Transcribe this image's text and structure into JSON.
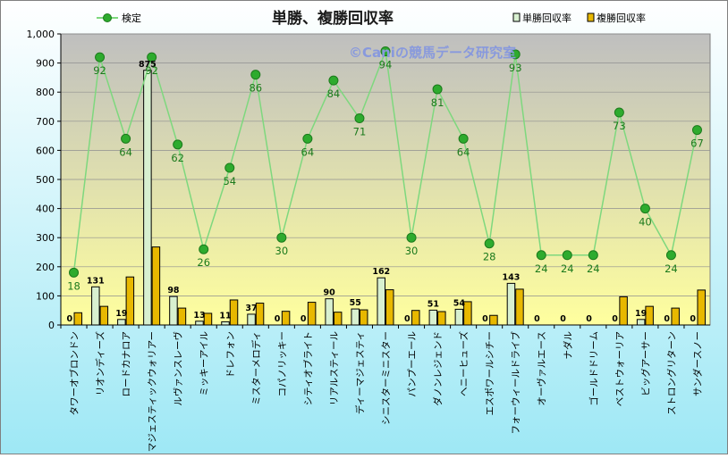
{
  "chart_data": {
    "type": "bar",
    "title": "単勝、複勝回収率",
    "watermark": "©Caniの競馬データ研究室",
    "xlabel": "",
    "ylabel": "",
    "ylim": [
      0,
      1000
    ],
    "yticks": [
      0,
      100,
      200,
      300,
      400,
      500,
      600,
      700,
      800,
      900,
      1000
    ],
    "ytick_labels": [
      "0",
      "100",
      "200",
      "300",
      "400",
      "500",
      "600",
      "700",
      "800",
      "900",
      "1,000"
    ],
    "legend_position": "top",
    "categories": [
      "タワーオブロンドン",
      "リオンディーズ",
      "ロードカナロア",
      "マジェスティックウォリアー",
      "ルヴァンスレーヴ",
      "ミッキーアイル",
      "ドレフォン",
      "ミスターメロディ",
      "コパノリッキー",
      "シティオブライト",
      "リアルスティール",
      "ディーマジェスティ",
      "シニスターミニスター",
      "パンプーエール",
      "ダノンレジェンド",
      "ヘニーヒューズ",
      "エスポワールシチー",
      "フォーウィールドライブ",
      "オーヴァルエース",
      "ナダル",
      "ゴールドドリーム",
      "ベストウォーリア",
      "ビッグアーサー",
      "ストロングリターン",
      "サンダースノー"
    ],
    "series": [
      {
        "name": "単勝回収率",
        "kind": "bar",
        "color": "#d8f0d0",
        "values": [
          0,
          131,
          19,
          875,
          98,
          13,
          11,
          37,
          0,
          0,
          90,
          55,
          162,
          0,
          51,
          54,
          0,
          143,
          0,
          0,
          0,
          0,
          19,
          0,
          0
        ]
      },
      {
        "name": "複勝回収率",
        "kind": "bar",
        "color": "#e8b800",
        "values": [
          42,
          64,
          165,
          268,
          58,
          40,
          86,
          75,
          47,
          78,
          44,
          52,
          121,
          50,
          46,
          80,
          33,
          123,
          0,
          0,
          0,
          97,
          64,
          58,
          120
        ]
      },
      {
        "name": "検定",
        "kind": "line",
        "color": "#2eab2e",
        "line_color": "#7ed87e",
        "values": [
          18,
          92,
          64,
          92,
          62,
          26,
          54,
          86,
          30,
          64,
          84,
          71,
          94,
          30,
          81,
          64,
          28,
          93,
          24,
          24,
          24,
          73,
          40,
          24,
          67
        ]
      }
    ],
    "colors": {
      "plot_bg_top": "#bfbfbf",
      "plot_bg_bottom": "#ffff9e",
      "outer_bg_top": "#ffffff",
      "outer_bg_bottom": "#9ee8f5",
      "title": "#1a1a1a",
      "watermark": "#8899dd",
      "line_label": "#1c7a1c"
    }
  }
}
